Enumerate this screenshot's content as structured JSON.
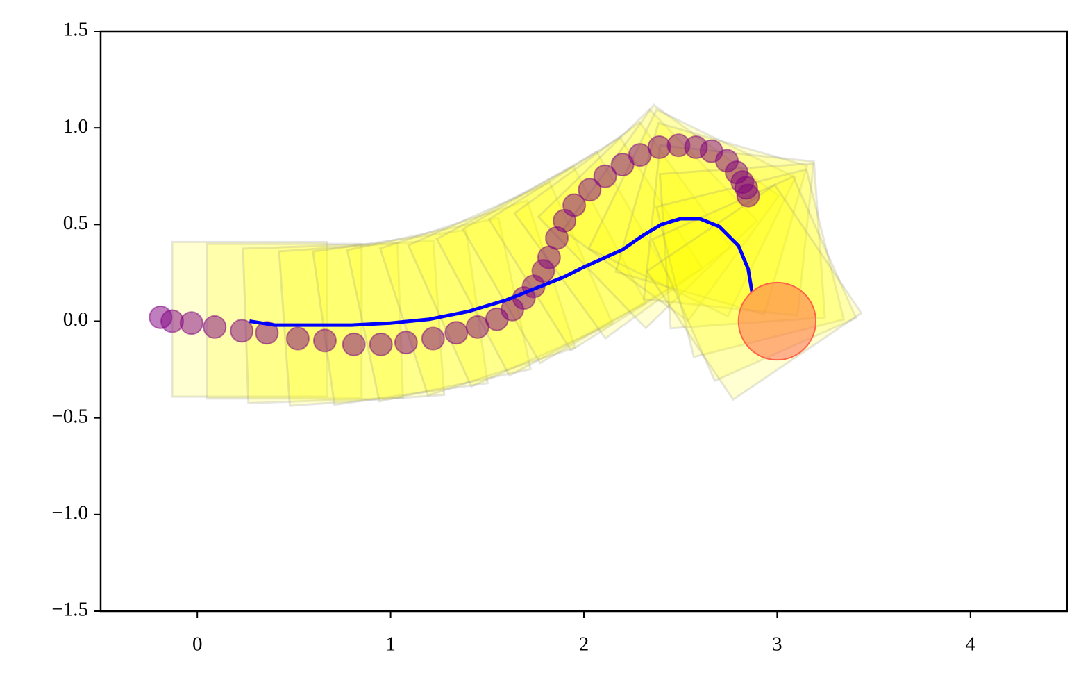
{
  "chart_data": {
    "type": "scatter",
    "xlim": [
      -0.5,
      4.5
    ],
    "ylim": [
      -1.5,
      1.5
    ],
    "xticks": [
      0,
      1,
      2,
      3,
      4
    ],
    "yticks": [
      {
        "value": -1.5,
        "label": "−1.5"
      },
      {
        "value": -1.0,
        "label": "−1.0"
      },
      {
        "value": -0.5,
        "label": "−0.5"
      },
      {
        "value": 0,
        "label": "0.0"
      },
      0.5,
      {
        "value": 1.0,
        "label": "1.0"
      },
      1.5
    ],
    "squares": {
      "color": "yellow",
      "edge": "gray",
      "size": 0.8,
      "x": [
        0.27,
        0.45,
        0.65,
        0.85,
        1.05,
        1.25,
        1.45,
        1.62,
        1.78,
        1.92,
        2.06,
        2.2,
        2.33,
        2.45,
        2.56,
        2.66,
        2.75,
        2.82,
        2.86,
        2.88,
        2.88
      ],
      "y": [
        0.01,
        0.0,
        -0.01,
        -0.01,
        0.02,
        0.06,
        0.12,
        0.19,
        0.26,
        0.33,
        0.4,
        0.47,
        0.53,
        0.56,
        0.56,
        0.53,
        0.47,
        0.39,
        0.3,
        0.22,
        0.15
      ],
      "angle": [
        0,
        0,
        2,
        4,
        8,
        12,
        18,
        24,
        28,
        30,
        32,
        36,
        44,
        54,
        64,
        74,
        84,
        94,
        104,
        114,
        124
      ]
    },
    "points": {
      "color": "purple",
      "x": [
        -0.19,
        -0.13,
        -0.03,
        0.09,
        0.23,
        0.36,
        0.52,
        0.66,
        0.81,
        0.95,
        1.08,
        1.22,
        1.34,
        1.45,
        1.55,
        1.63,
        1.69,
        1.74,
        1.79,
        1.82,
        1.86,
        1.9,
        1.95,
        2.03,
        2.11,
        2.2,
        2.29,
        2.39,
        2.49,
        2.58,
        2.66,
        2.74,
        2.79,
        2.82,
        2.84,
        2.85
      ],
      "y": [
        0.02,
        0.0,
        -0.01,
        -0.03,
        -0.05,
        -0.06,
        -0.09,
        -0.1,
        -0.12,
        -0.12,
        -0.11,
        -0.09,
        -0.06,
        -0.03,
        0.01,
        0.06,
        0.12,
        0.18,
        0.26,
        0.33,
        0.43,
        0.52,
        0.6,
        0.68,
        0.75,
        0.81,
        0.86,
        0.9,
        0.91,
        0.9,
        0.88,
        0.83,
        0.77,
        0.72,
        0.69,
        0.65
      ]
    },
    "line": {
      "color": "blue",
      "x": [
        0.27,
        0.4,
        0.6,
        0.8,
        1.0,
        1.2,
        1.4,
        1.6,
        1.8,
        1.9,
        2.0,
        2.2,
        2.3,
        2.4,
        2.5,
        2.6,
        2.7,
        2.8,
        2.85,
        2.87
      ],
      "y": [
        0.0,
        -0.02,
        -0.02,
        -0.02,
        -0.01,
        0.01,
        0.05,
        0.11,
        0.19,
        0.23,
        0.28,
        0.37,
        0.44,
        0.5,
        0.53,
        0.53,
        0.49,
        0.39,
        0.27,
        0.15
      ]
    },
    "target": {
      "x": 3,
      "y": 0,
      "r": 0.2,
      "color": "tomato"
    }
  }
}
